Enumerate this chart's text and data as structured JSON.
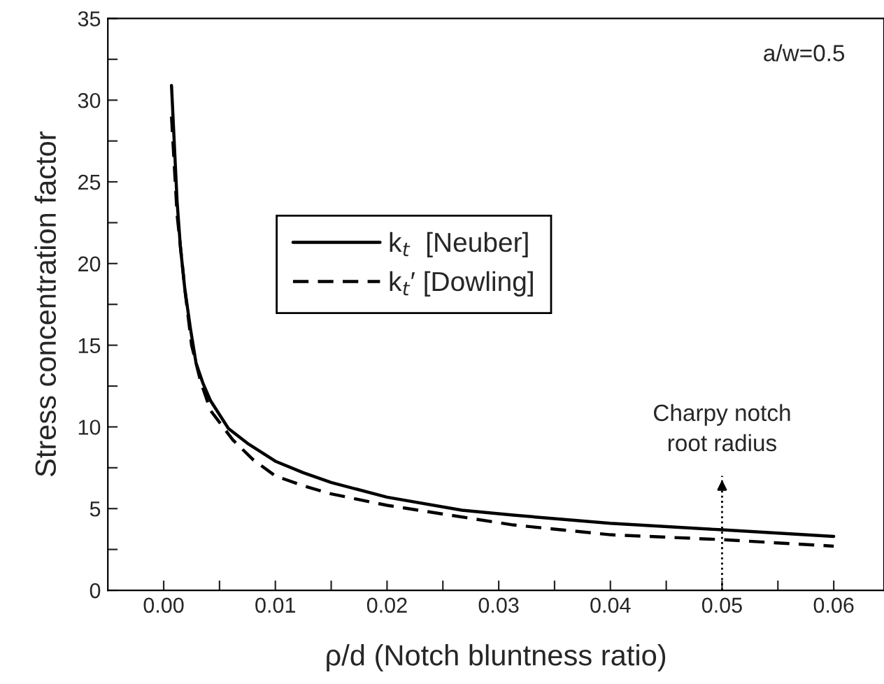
{
  "chart_data": {
    "type": "line",
    "xlabel": "ρ/d (Notch bluntness ratio)",
    "ylabel": "Stress concentration factor",
    "series": [
      {
        "name": "k$_{t}$  [Neuber]",
        "color": "#000000",
        "line_style": "solid",
        "x": [
          0.0007,
          0.0012,
          0.0015,
          0.0019,
          0.0024,
          0.0029,
          0.0035,
          0.0042,
          0.0058,
          0.0075,
          0.01,
          0.0125,
          0.015,
          0.02,
          0.0267,
          0.0313,
          0.04,
          0.05,
          0.06
        ],
        "values": [
          30.9,
          23.8,
          21.0,
          18.4,
          16.0,
          13.9,
          12.7,
          11.6,
          9.9,
          9.0,
          7.9,
          7.2,
          6.6,
          5.7,
          4.9,
          4.6,
          4.1,
          3.7,
          3.3
        ]
      },
      {
        "name": "k$_{t}$′ [Dowling]",
        "color": "#000000",
        "line_style": "dashed",
        "x": [
          0.0007,
          0.0012,
          0.0019,
          0.0025,
          0.0033,
          0.0042,
          0.0062,
          0.008,
          0.01,
          0.0125,
          0.015,
          0.02,
          0.0313,
          0.04,
          0.05,
          0.06
        ],
        "values": [
          29.0,
          23.0,
          18.4,
          15.0,
          12.8,
          11.0,
          9.2,
          8.0,
          7.0,
          6.4,
          5.9,
          5.2,
          4.0,
          3.4,
          3.1,
          2.7
        ]
      }
    ],
    "xlim": [
      -0.005,
      0.0645
    ],
    "ylim": [
      0,
      35
    ],
    "xticks": [
      {
        "value": 0.0,
        "label": "0.00"
      },
      {
        "value": 0.005,
        "label": null
      },
      {
        "value": 0.01,
        "label": "0.01"
      },
      {
        "value": 0.015,
        "label": null
      },
      {
        "value": 0.02,
        "label": "0.02"
      },
      {
        "value": 0.025,
        "label": null
      },
      {
        "value": 0.03,
        "label": "0.03"
      },
      {
        "value": 0.035,
        "label": null
      },
      {
        "value": 0.04,
        "label": "0.04"
      },
      {
        "value": 0.045,
        "label": null
      },
      {
        "value": 0.05,
        "label": "0.05"
      },
      {
        "value": 0.055,
        "label": null
      },
      {
        "value": 0.06,
        "label": "0.06"
      }
    ],
    "yticks": [
      0,
      {
        "value": 2.5,
        "label": null
      },
      5,
      {
        "value": 7.5,
        "label": null
      },
      10,
      {
        "value": 12.5,
        "label": null
      },
      15,
      {
        "value": 17.5,
        "label": null
      },
      20,
      {
        "value": 22.5,
        "label": null
      },
      25,
      {
        "value": 27.5,
        "label": null
      },
      30,
      {
        "value": 32.5,
        "label": null
      },
      35
    ],
    "ref_lines": [
      {
        "axis": "x",
        "value": 0.05,
        "label": "Charpy notch\nroot radius",
        "line_style": "dotted",
        "color": "#000000"
      }
    ],
    "annotations": [
      "a/w=0.5"
    ],
    "legend": "center left",
    "grid": false,
    "marker": "none"
  }
}
